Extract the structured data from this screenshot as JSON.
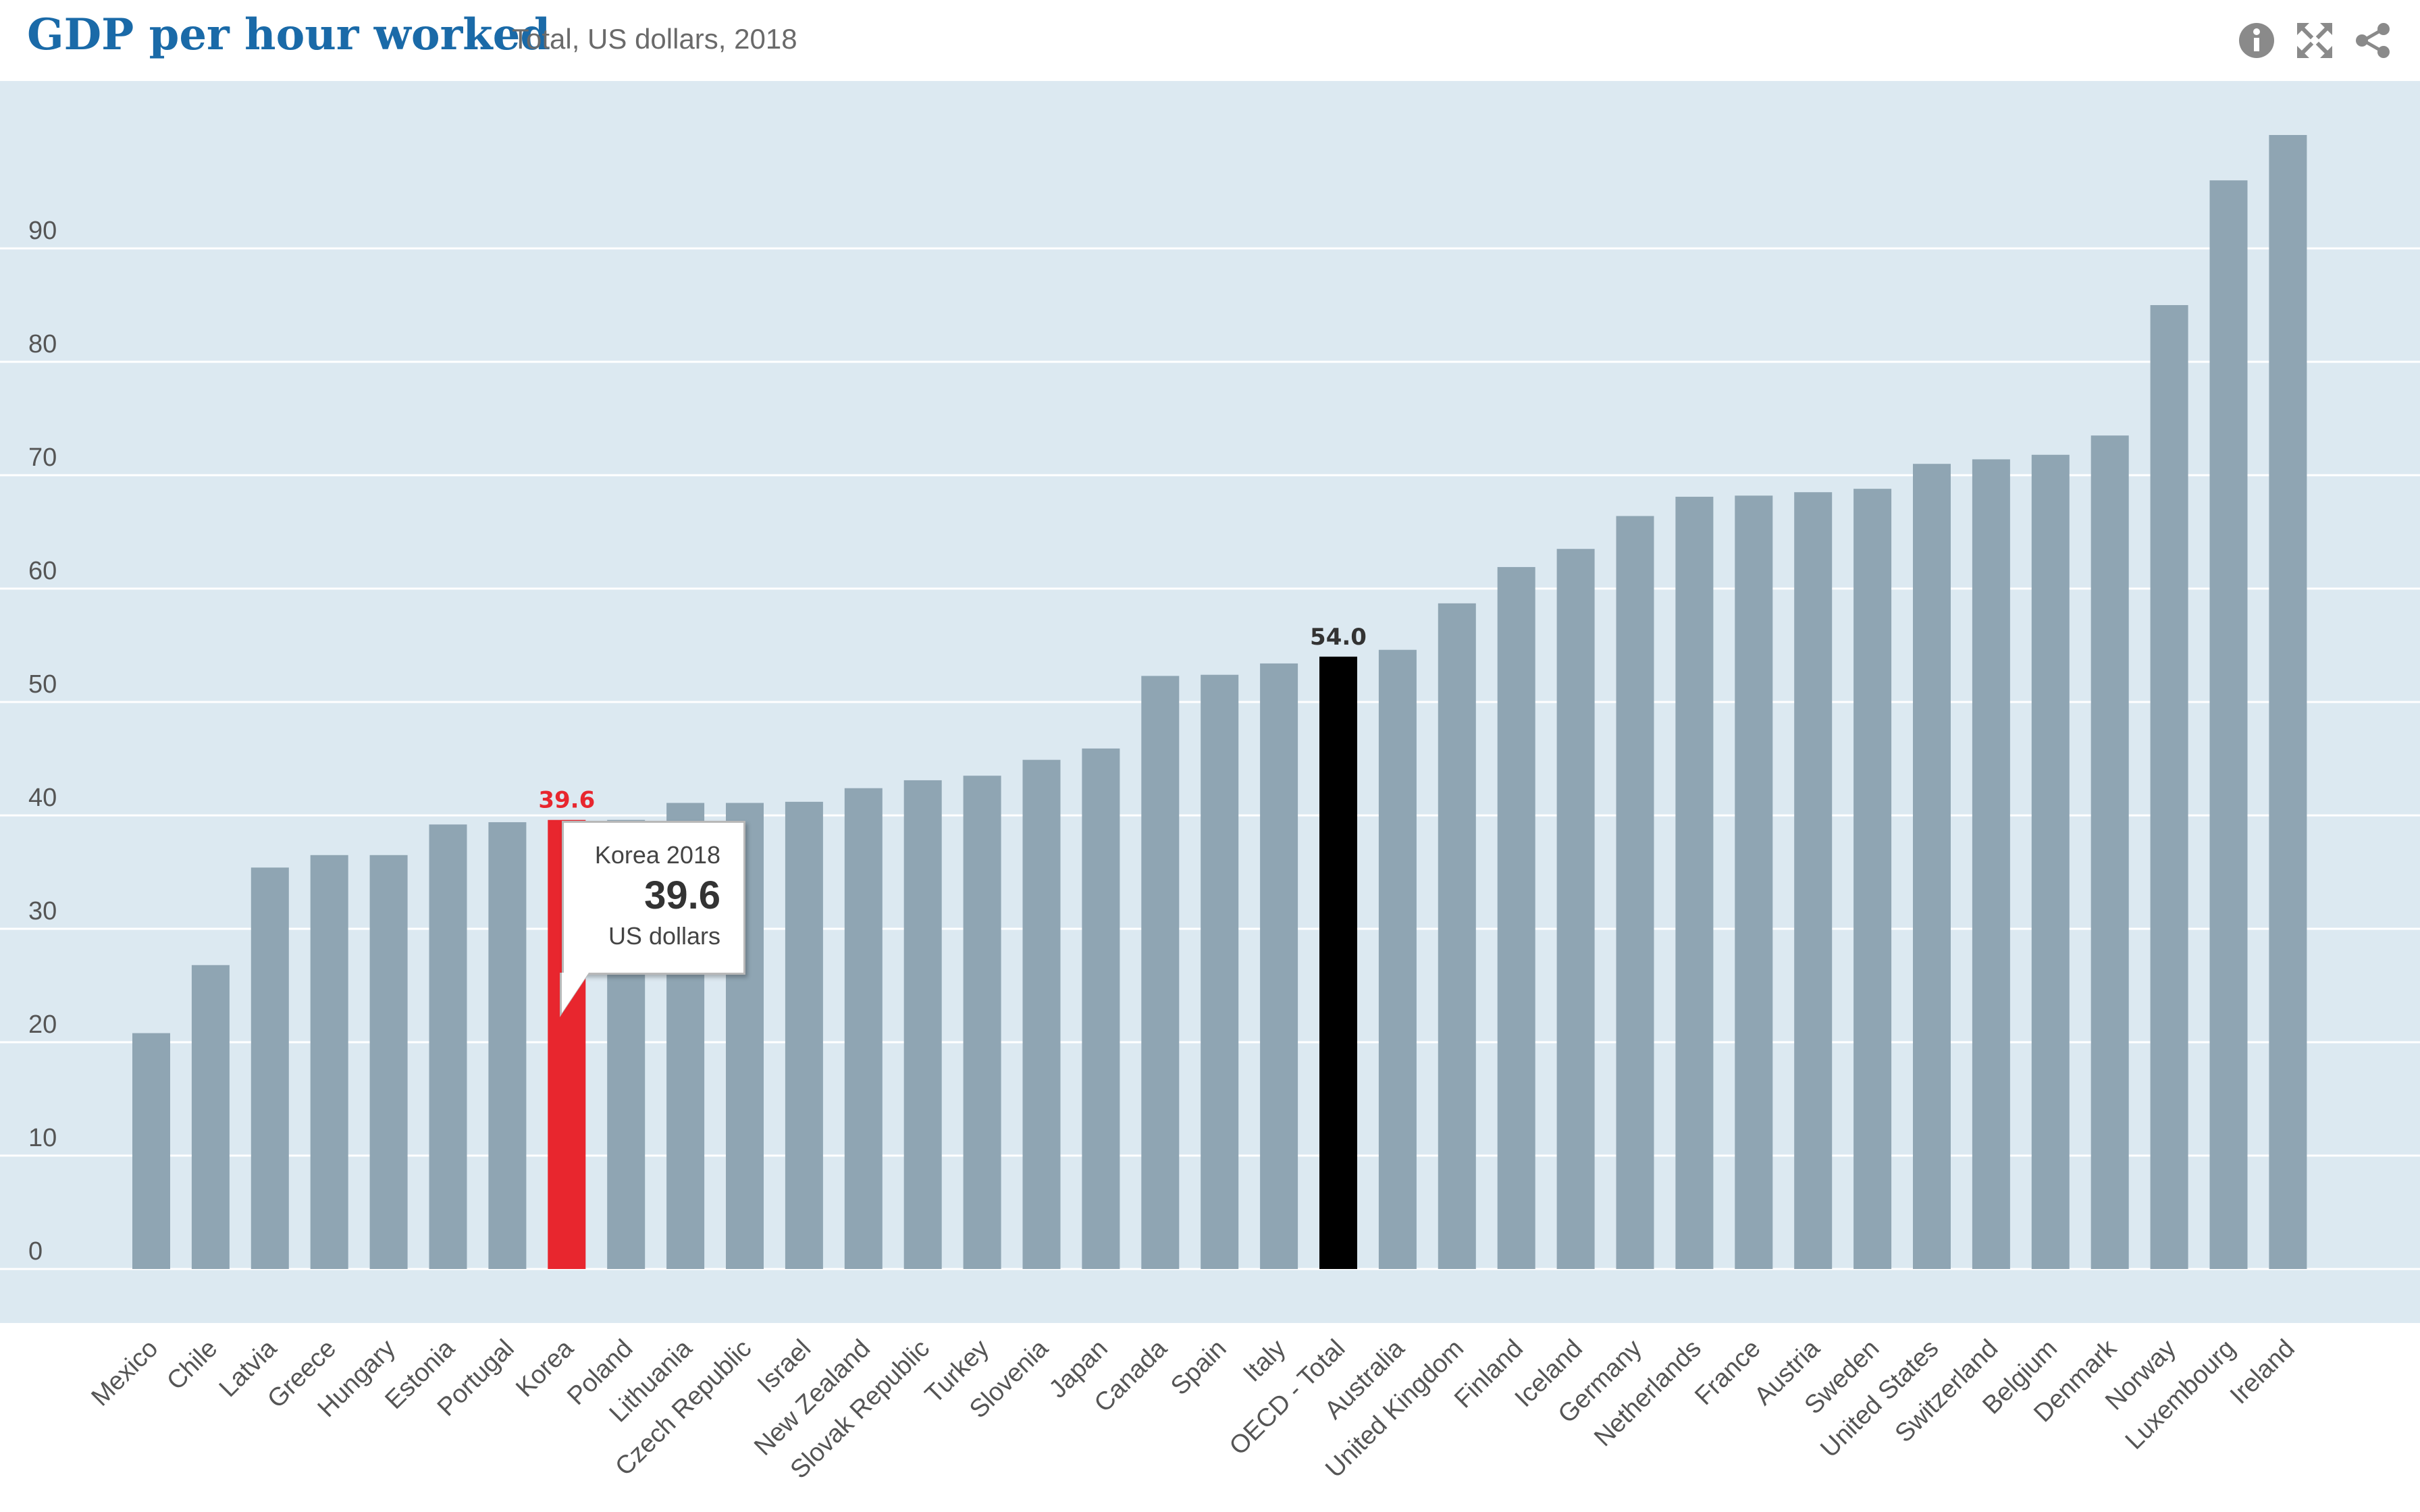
{
  "header": {
    "title": "GDP per hour worked",
    "subtitle": "Total, US dollars, 2018"
  },
  "toolbar": {
    "icons": [
      "info-icon",
      "fullscreen-icon",
      "share-icon"
    ]
  },
  "tooltip": {
    "title": "Korea 2018",
    "value": "39.6",
    "unit": "US dollars"
  },
  "colors": {
    "plot_background": "#dce9f1",
    "bar_default": "#8fa5b3",
    "bar_highlight": "#e8262e",
    "bar_reference": "#000000",
    "gridline": "#ffffff",
    "title": "#1a6aa8"
  },
  "chart_data": {
    "type": "bar",
    "title": "GDP per hour worked",
    "subtitle": "Total, US dollars, 2018",
    "categories": [
      "Mexico",
      "Chile",
      "Latvia",
      "Greece",
      "Hungary",
      "Estonia",
      "Portugal",
      "Korea",
      "Poland",
      "Lithuania",
      "Czech Republic",
      "Israel",
      "New Zealand",
      "Slovak Republic",
      "Turkey",
      "Slovenia",
      "Japan",
      "Canada",
      "Spain",
      "Italy",
      "OECD - Total",
      "Australia",
      "United Kingdom",
      "Finland",
      "Iceland",
      "Germany",
      "Netherlands",
      "France",
      "Austria",
      "Sweden",
      "United States",
      "Switzerland",
      "Belgium",
      "Denmark",
      "Norway",
      "Luxembourg",
      "Ireland"
    ],
    "values": [
      20.8,
      26.8,
      35.4,
      36.5,
      36.5,
      39.2,
      39.4,
      39.6,
      39.6,
      41.1,
      41.1,
      41.2,
      42.4,
      43.1,
      43.5,
      44.9,
      45.9,
      52.3,
      52.4,
      53.4,
      54.0,
      54.6,
      58.7,
      61.9,
      63.5,
      66.4,
      68.1,
      68.2,
      68.5,
      68.8,
      71.0,
      71.4,
      71.8,
      73.5,
      85.0,
      96.0,
      100.0
    ],
    "highlighted": {
      "Korea": "39.6",
      "OECD - Total": "54.0"
    },
    "ylim": [
      0,
      100
    ],
    "yticks": [
      0,
      10,
      20,
      30,
      40,
      50,
      60,
      70,
      80,
      90
    ],
    "grid": true,
    "xlabel": "",
    "ylabel": ""
  }
}
